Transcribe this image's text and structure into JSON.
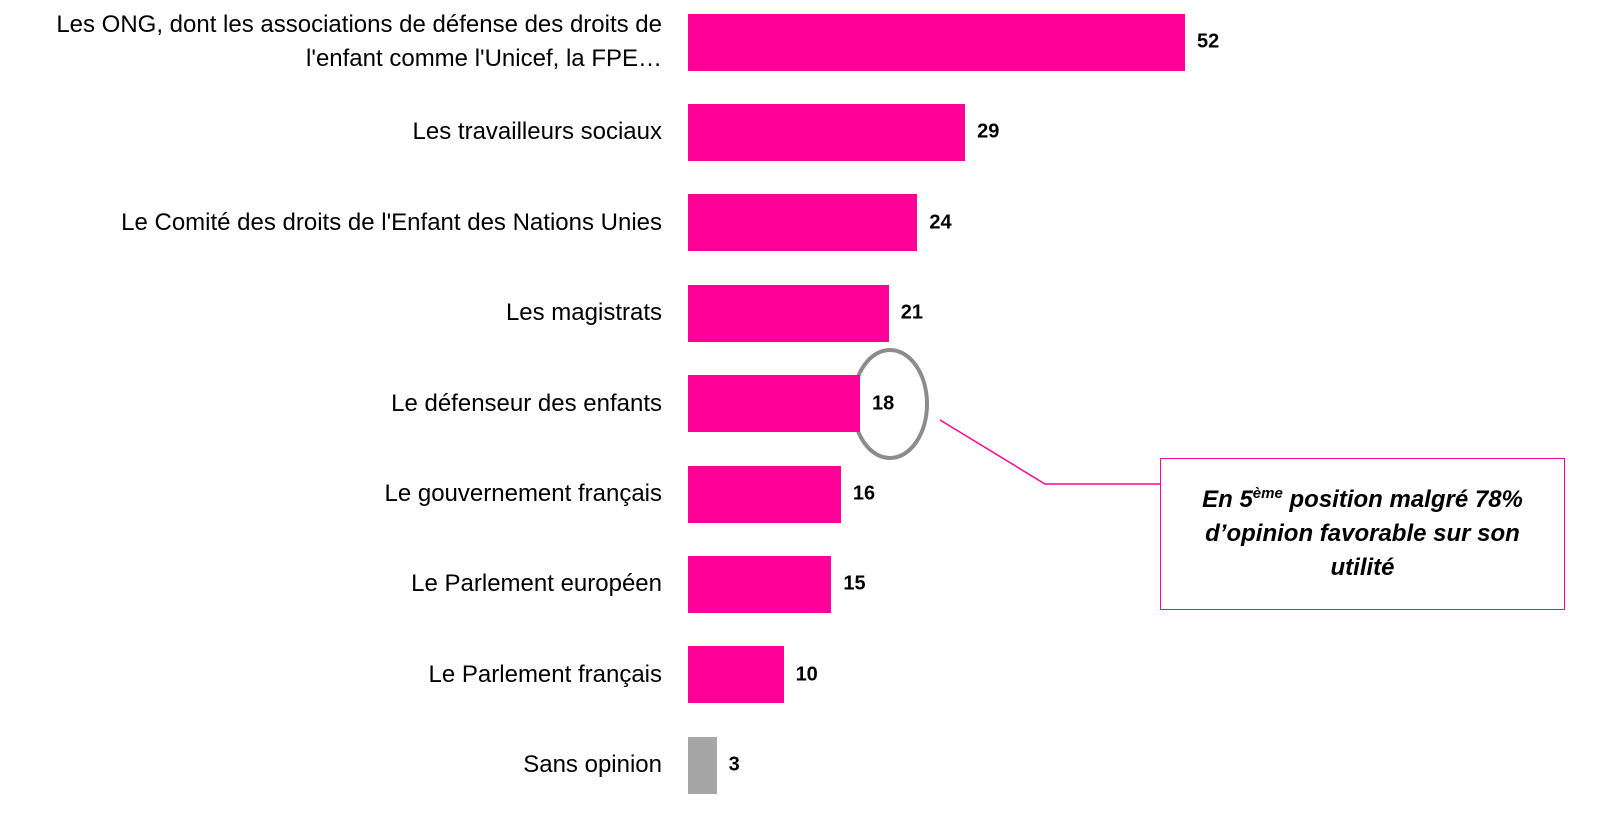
{
  "chart_data": {
    "type": "bar",
    "orientation": "horizontal",
    "categories": [
      "Les ONG, dont les associations de défense des droits de l'enfant comme l'Unicef, la FPE…",
      "Les travailleurs sociaux",
      "Le Comité des droits de l'Enfant des Nations Unies",
      "Les magistrats",
      "Le défenseur des enfants",
      "Le gouvernement français",
      "Le Parlement européen",
      "Le Parlement français",
      "Sans opinion"
    ],
    "values": [
      52,
      29,
      24,
      21,
      18,
      16,
      15,
      10,
      3
    ],
    "colors": [
      "#ff0099",
      "#ff0099",
      "#ff0099",
      "#ff0099",
      "#ff0099",
      "#ff0099",
      "#ff0099",
      "#ff0099",
      "#a6a6a6"
    ],
    "annotation": [
      "En 5",
      "ème",
      " position malgré 78% d’opinion favorable sur son utilité"
    ]
  }
}
